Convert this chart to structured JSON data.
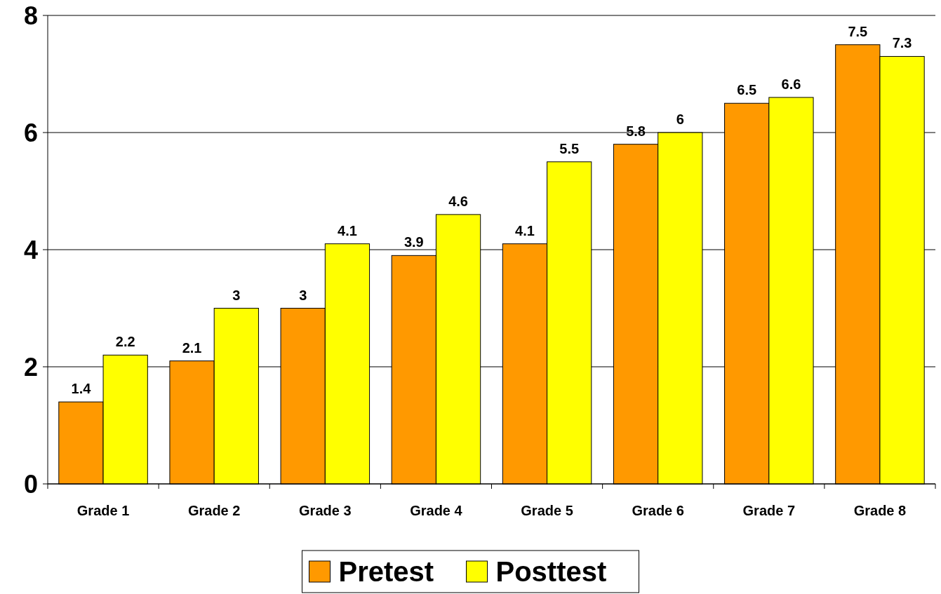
{
  "chart_data": {
    "type": "bar",
    "categories": [
      "Grade 1",
      "Grade 2",
      "Grade 3",
      "Grade 4",
      "Grade 5",
      "Grade 6",
      "Grade 7",
      "Grade 8"
    ],
    "series": [
      {
        "name": "Pretest",
        "color": "#ff9900",
        "values": [
          1.4,
          2.1,
          3,
          3.9,
          4.1,
          5.8,
          6.5,
          7.5
        ]
      },
      {
        "name": "Posttest",
        "color": "#ffff00",
        "values": [
          2.2,
          3,
          4.1,
          4.6,
          5.5,
          6,
          6.6,
          7.3
        ]
      }
    ],
    "ylim": [
      0,
      8
    ],
    "yticks": [
      0,
      2,
      4,
      6,
      8
    ],
    "grid": "y",
    "data_labels": true,
    "legend": "bottom"
  }
}
